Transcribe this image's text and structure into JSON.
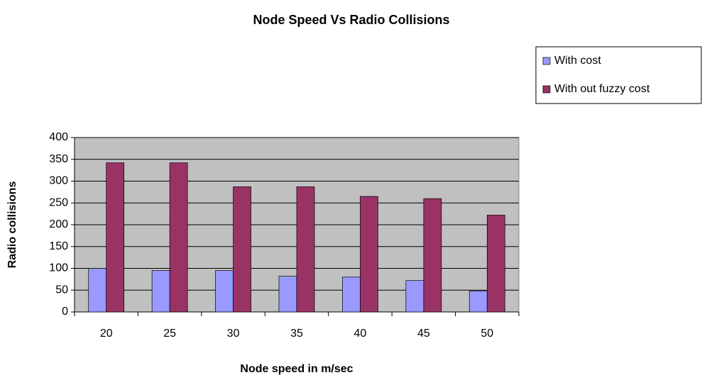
{
  "chart_data": {
    "type": "bar",
    "title": "Node Speed Vs Radio Collisions",
    "x_label": "Node speed in m/sec",
    "y_label": "Radio collisions",
    "categories": [
      "20",
      "25",
      "30",
      "35",
      "40",
      "45",
      "50"
    ],
    "series": [
      {
        "name": "With cost",
        "color": "#9999ff",
        "values": [
          100,
          95,
          95,
          82,
          80,
          72,
          48
        ]
      },
      {
        "name": "With out fuzzy cost",
        "color": "#993366",
        "values": [
          342,
          342,
          287,
          287,
          265,
          260,
          222
        ]
      }
    ],
    "ylim": [
      0,
      400
    ],
    "yticks": [
      0,
      50,
      100,
      150,
      200,
      250,
      300,
      350,
      400
    ],
    "grid": true,
    "legend": "right"
  }
}
